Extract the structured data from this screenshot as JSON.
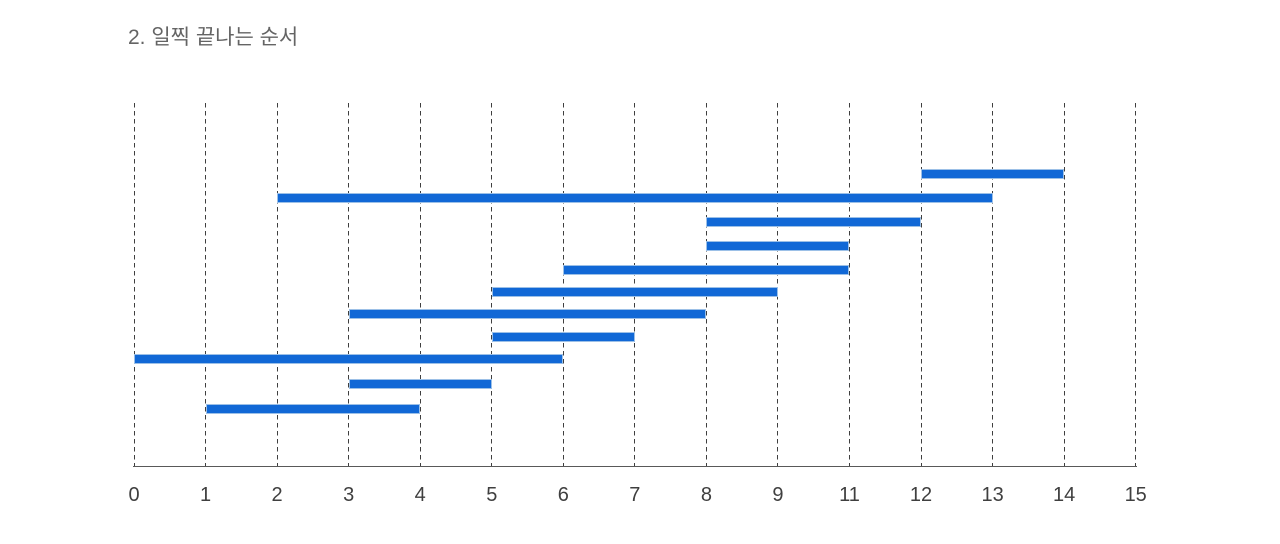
{
  "chart_data": {
    "type": "bar",
    "subtype": "horizontal-interval (activity/Gantt style)",
    "title": "2. 일찍 끝나는 순서",
    "xlabel": "",
    "ylabel": "",
    "x_tick_labels": [
      "0",
      "1",
      "2",
      "3",
      "4",
      "5",
      "6",
      "7",
      "8",
      "9",
      "11",
      "12",
      "13",
      "14",
      "15"
    ],
    "grid": "vertical dashed gridline at every x tick",
    "legend": "none",
    "bar_order": "top to bottom",
    "bars": [
      {
        "start": "12",
        "end": "14"
      },
      {
        "start": "2",
        "end": "13"
      },
      {
        "start": "8",
        "end": "12"
      },
      {
        "start": "8",
        "end": "11"
      },
      {
        "start": "6",
        "end": "11"
      },
      {
        "start": "5",
        "end": "9"
      },
      {
        "start": "3",
        "end": "8"
      },
      {
        "start": "5",
        "end": "7"
      },
      {
        "start": "0",
        "end": "6"
      },
      {
        "start": "3",
        "end": "5"
      },
      {
        "start": "1",
        "end": "4"
      }
    ],
    "colors": {
      "bar": "#1168d6",
      "bar_border": "#9cc0e7",
      "gridline": "#3f3f3f",
      "axis_line": "#595959",
      "tick_label": "#3f3f3f",
      "title": "#646464"
    }
  }
}
